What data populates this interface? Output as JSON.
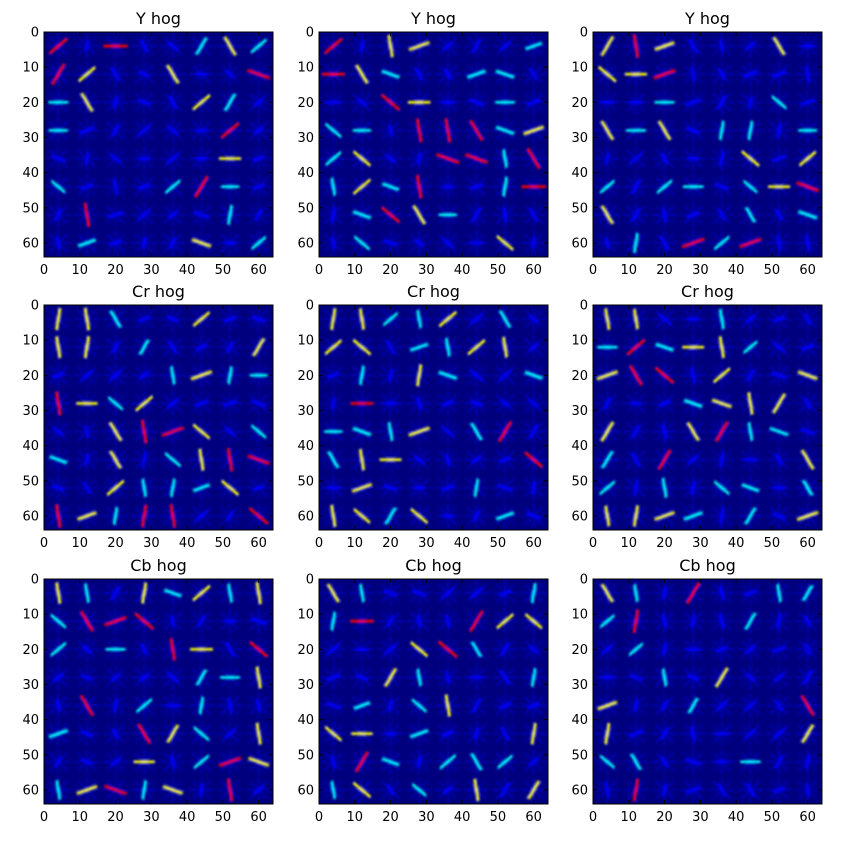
{
  "chart_data": [
    {
      "type": "heatmap",
      "title": "Y hog",
      "xlim": [
        0,
        64
      ],
      "ylim": [
        64,
        0
      ],
      "x_ticks": [
        "0",
        "10",
        "20",
        "30",
        "40",
        "50",
        "60"
      ],
      "y_ticks": [
        "0",
        "10",
        "20",
        "30",
        "40",
        "50",
        "60"
      ],
      "colormap": "jet",
      "cells": 8,
      "cell_size": 8
    },
    {
      "type": "heatmap",
      "title": "Y hog",
      "xlim": [
        0,
        64
      ],
      "ylim": [
        64,
        0
      ],
      "x_ticks": [
        "0",
        "10",
        "20",
        "30",
        "40",
        "50",
        "60"
      ],
      "y_ticks": [
        "0",
        "10",
        "20",
        "30",
        "40",
        "50",
        "60"
      ],
      "colormap": "jet",
      "cells": 8,
      "cell_size": 8
    },
    {
      "type": "heatmap",
      "title": "Y hog",
      "xlim": [
        0,
        64
      ],
      "ylim": [
        64,
        0
      ],
      "x_ticks": [
        "0",
        "10",
        "20",
        "30",
        "40",
        "50",
        "60"
      ],
      "y_ticks": [
        "0",
        "10",
        "20",
        "30",
        "40",
        "50",
        "60"
      ],
      "colormap": "jet",
      "cells": 8,
      "cell_size": 8
    },
    {
      "type": "heatmap",
      "title": "Cr hog",
      "xlim": [
        0,
        64
      ],
      "ylim": [
        64,
        0
      ],
      "x_ticks": [
        "0",
        "10",
        "20",
        "30",
        "40",
        "50",
        "60"
      ],
      "y_ticks": [
        "0",
        "10",
        "20",
        "30",
        "40",
        "50",
        "60"
      ],
      "colormap": "jet",
      "cells": 8,
      "cell_size": 8
    },
    {
      "type": "heatmap",
      "title": "Cr hog",
      "xlim": [
        0,
        64
      ],
      "ylim": [
        64,
        0
      ],
      "x_ticks": [
        "0",
        "10",
        "20",
        "30",
        "40",
        "50",
        "60"
      ],
      "y_ticks": [
        "0",
        "10",
        "20",
        "30",
        "40",
        "50",
        "60"
      ],
      "colormap": "jet",
      "cells": 8,
      "cell_size": 8
    },
    {
      "type": "heatmap",
      "title": "Cr hog",
      "xlim": [
        0,
        64
      ],
      "ylim": [
        64,
        0
      ],
      "x_ticks": [
        "0",
        "10",
        "20",
        "30",
        "40",
        "50",
        "60"
      ],
      "y_ticks": [
        "0",
        "10",
        "20",
        "30",
        "40",
        "50",
        "60"
      ],
      "colormap": "jet",
      "cells": 8,
      "cell_size": 8
    },
    {
      "type": "heatmap",
      "title": "Cb hog",
      "xlim": [
        0,
        64
      ],
      "ylim": [
        64,
        0
      ],
      "x_ticks": [
        "0",
        "10",
        "20",
        "30",
        "40",
        "50",
        "60"
      ],
      "y_ticks": [
        "0",
        "10",
        "20",
        "30",
        "40",
        "50",
        "60"
      ],
      "colormap": "jet",
      "cells": 8,
      "cell_size": 8
    },
    {
      "type": "heatmap",
      "title": "Cb hog",
      "xlim": [
        0,
        64
      ],
      "ylim": [
        64,
        0
      ],
      "x_ticks": [
        "0",
        "10",
        "20",
        "30",
        "40",
        "50",
        "60"
      ],
      "y_ticks": [
        "0",
        "10",
        "20",
        "30",
        "40",
        "50",
        "60"
      ],
      "colormap": "jet",
      "cells": 8,
      "cell_size": 8
    },
    {
      "type": "heatmap",
      "title": "Cb hog",
      "xlim": [
        0,
        64
      ],
      "ylim": [
        64,
        0
      ],
      "x_ticks": [
        "0",
        "10",
        "20",
        "30",
        "40",
        "50",
        "60"
      ],
      "y_ticks": [
        "0",
        "10",
        "20",
        "30",
        "40",
        "50",
        "60"
      ],
      "colormap": "jet",
      "cells": 8,
      "cell_size": 8
    }
  ],
  "colors": {
    "background": "#00007f",
    "low": "#0000ff",
    "mid": "#00ffff",
    "midhigh": "#ffff00",
    "high": "#ff0000"
  }
}
